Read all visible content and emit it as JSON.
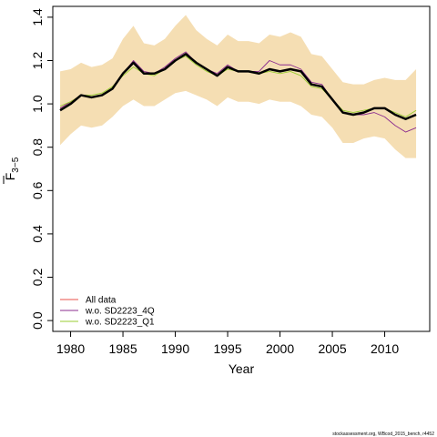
{
  "chart_data": {
    "type": "line",
    "xlabel": "Year",
    "ylabel_main": "F",
    "ylabel_sub": "3−5",
    "xlim": [
      1978.3,
      2014.3
    ],
    "ylim": [
      -0.05,
      1.45
    ],
    "xticks": [
      1980,
      1985,
      1990,
      1995,
      2000,
      2005,
      2010
    ],
    "yticks": [
      0.0,
      0.2,
      0.4,
      0.6,
      0.8,
      1.0,
      1.2,
      1.4
    ],
    "ytick_labels": [
      "0.0",
      "0.2",
      "0.4",
      "0.6",
      "0.8",
      "1.0",
      "1.2",
      "1.4"
    ],
    "x": [
      1979,
      1980,
      1981,
      1982,
      1983,
      1984,
      1985,
      1986,
      1987,
      1988,
      1989,
      1990,
      1991,
      1992,
      1993,
      1994,
      1995,
      1996,
      1997,
      1998,
      1999,
      2000,
      2001,
      2002,
      2003,
      2004,
      2005,
      2006,
      2007,
      2008,
      2009,
      2010,
      2011,
      2012,
      2013
    ],
    "band": {
      "color": "#f5deb3",
      "upper": [
        1.15,
        1.16,
        1.19,
        1.17,
        1.18,
        1.21,
        1.3,
        1.36,
        1.28,
        1.27,
        1.3,
        1.36,
        1.41,
        1.34,
        1.3,
        1.27,
        1.32,
        1.29,
        1.29,
        1.28,
        1.32,
        1.31,
        1.33,
        1.31,
        1.23,
        1.22,
        1.16,
        1.1,
        1.09,
        1.09,
        1.11,
        1.12,
        1.11,
        1.11,
        1.16
      ],
      "lower": [
        0.81,
        0.86,
        0.9,
        0.89,
        0.9,
        0.94,
        0.99,
        1.02,
        0.99,
        0.99,
        1.02,
        1.05,
        1.06,
        1.04,
        1.02,
        0.99,
        1.03,
        1.01,
        1.01,
        1.0,
        1.02,
        1.01,
        1.01,
        0.99,
        0.95,
        0.94,
        0.89,
        0.82,
        0.82,
        0.84,
        0.85,
        0.84,
        0.79,
        0.75,
        0.75
      ]
    },
    "series": [
      {
        "name": "",
        "color": "#000000",
        "width": 2.5,
        "in_legend": false,
        "values": [
          0.97,
          1.0,
          1.04,
          1.03,
          1.04,
          1.07,
          1.14,
          1.19,
          1.14,
          1.14,
          1.16,
          1.2,
          1.23,
          1.19,
          1.16,
          1.13,
          1.17,
          1.15,
          1.15,
          1.14,
          1.16,
          1.15,
          1.16,
          1.15,
          1.09,
          1.08,
          1.02,
          0.96,
          0.95,
          0.96,
          0.98,
          0.98,
          0.95,
          0.93,
          0.95
        ]
      },
      {
        "name": "All data",
        "color": "#e8514a",
        "width": 0.9,
        "in_legend": true,
        "values": [
          0.98,
          1.01,
          1.04,
          1.03,
          1.04,
          1.07,
          1.14,
          1.19,
          1.14,
          1.14,
          1.16,
          1.2,
          1.23,
          1.19,
          1.16,
          1.13,
          1.17,
          1.15,
          1.15,
          1.14,
          1.16,
          1.15,
          1.16,
          1.15,
          1.09,
          1.08,
          1.02,
          0.96,
          0.95,
          0.96,
          0.98,
          0.98,
          0.95,
          0.93,
          0.95
        ]
      },
      {
        "name": "w.o. SD2223_4Q",
        "color": "#8b2c8f",
        "width": 0.9,
        "in_legend": true,
        "values": [
          0.98,
          1.01,
          1.04,
          1.03,
          1.04,
          1.07,
          1.14,
          1.2,
          1.15,
          1.14,
          1.17,
          1.21,
          1.24,
          1.19,
          1.16,
          1.14,
          1.18,
          1.15,
          1.15,
          1.15,
          1.2,
          1.18,
          1.18,
          1.16,
          1.1,
          1.09,
          1.02,
          0.96,
          0.95,
          0.95,
          0.96,
          0.94,
          0.9,
          0.87,
          0.89
        ]
      },
      {
        "name": "w.o. SD2223_Q1",
        "color": "#9acd32",
        "width": 0.9,
        "in_legend": true,
        "values": [
          0.99,
          1.01,
          1.04,
          1.04,
          1.05,
          1.08,
          1.13,
          1.17,
          1.14,
          1.13,
          1.16,
          1.2,
          1.22,
          1.18,
          1.15,
          1.13,
          1.16,
          1.15,
          1.15,
          1.14,
          1.15,
          1.14,
          1.15,
          1.13,
          1.08,
          1.07,
          1.02,
          0.97,
          0.96,
          0.97,
          0.98,
          0.98,
          0.96,
          0.94,
          0.97
        ]
      }
    ],
    "legend_position": "bottom-left",
    "footnote": "stockassessment.org, WBcod_2015_bench, r4452"
  }
}
